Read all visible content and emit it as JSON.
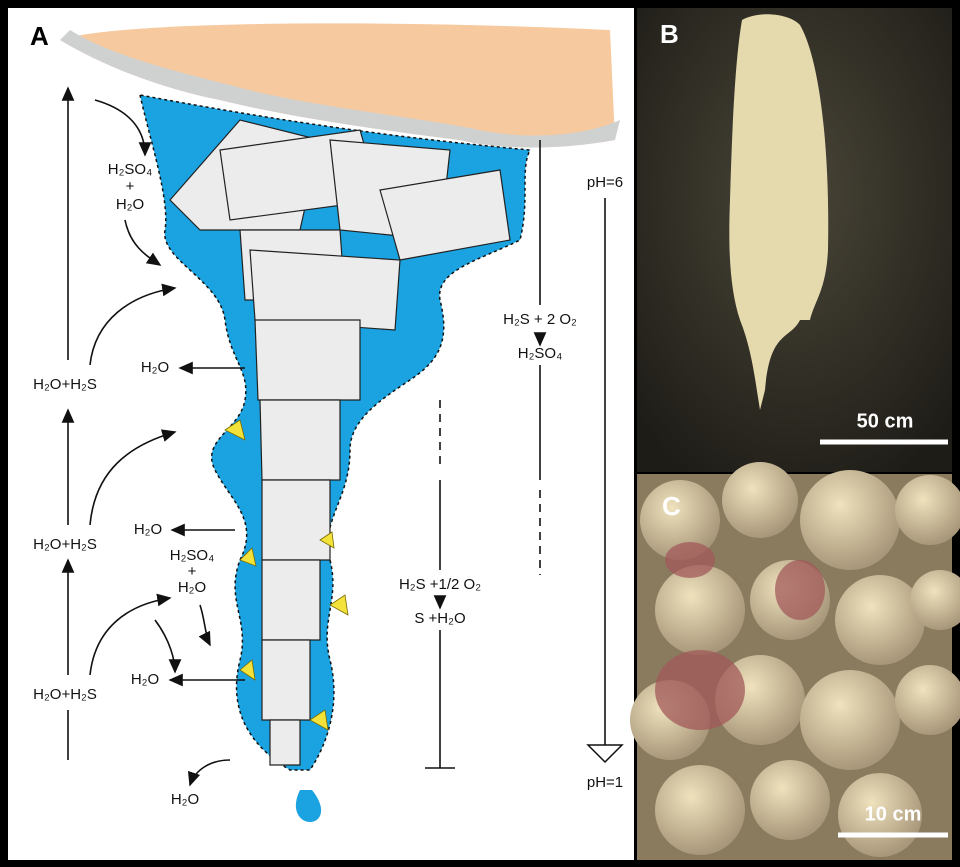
{
  "panel_a": {
    "label": "A",
    "texts": [
      "H₂SO₄",
      "+",
      "H₂O",
      "H₂O",
      "H₂O+H₂S",
      "H₂O+H₂S",
      "H₂O",
      "H₂SO₄",
      "+",
      "H₂O",
      "H₂O",
      "H₂O+H₂S",
      "H₂O",
      "H₂S + 2 O₂",
      "H₂SO₄",
      "pH=6",
      "pH=1",
      "H₂S +1/2 O₂",
      "S +H₂O"
    ]
  },
  "panel_b": {
    "label": "B",
    "scale_bar": "50 cm"
  },
  "panel_c": {
    "label": "C",
    "scale_bar": "10 cm"
  }
}
